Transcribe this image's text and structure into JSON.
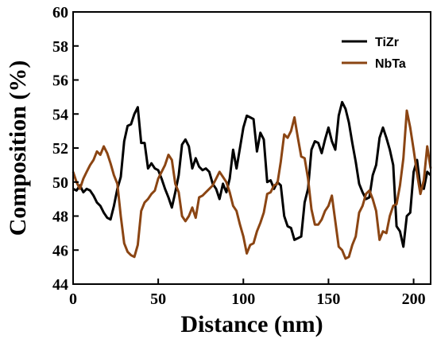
{
  "chart_data": {
    "type": "line",
    "xlabel": "Distance (nm)",
    "ylabel": "Composition (%)",
    "xlim": [
      0,
      210
    ],
    "ylim": [
      44,
      60
    ],
    "x_ticks": [
      0,
      50,
      100,
      150,
      200
    ],
    "y_ticks": [
      44,
      46,
      48,
      50,
      52,
      54,
      56,
      58,
      60
    ],
    "grid": false,
    "legend_position": "top-right",
    "series": [
      {
        "name": "TiZr",
        "color": "#000000",
        "x": [
          0,
          2,
          4,
          6,
          8,
          10,
          12,
          14,
          16,
          18,
          20,
          22,
          24,
          26,
          28,
          30,
          32,
          34,
          36,
          38,
          40,
          42,
          44,
          46,
          48,
          50,
          52,
          54,
          56,
          58,
          60,
          62,
          64,
          66,
          68,
          70,
          72,
          74,
          76,
          78,
          80,
          82,
          84,
          86,
          88,
          90,
          92,
          94,
          96,
          98,
          100,
          102,
          104,
          106,
          108,
          110,
          112,
          114,
          116,
          118,
          120,
          122,
          124,
          126,
          128,
          130,
          132,
          134,
          136,
          138,
          140,
          142,
          144,
          146,
          148,
          150,
          152,
          154,
          156,
          158,
          160,
          162,
          164,
          166,
          168,
          170,
          172,
          174,
          176,
          178,
          180,
          182,
          184,
          186,
          188,
          190,
          192,
          194,
          196,
          198,
          200,
          202,
          204,
          206,
          208,
          210
        ],
        "values": [
          49.6,
          49.5,
          49.8,
          49.4,
          49.6,
          49.5,
          49.2,
          48.8,
          48.6,
          48.2,
          47.9,
          47.8,
          48.6,
          49.6,
          50.3,
          52.4,
          53.3,
          53.4,
          54.0,
          54.4,
          52.3,
          52.3,
          50.8,
          51.1,
          50.8,
          50.7,
          50.2,
          49.6,
          49.1,
          48.5,
          49.4,
          50.4,
          52.2,
          52.5,
          52.1,
          50.8,
          51.4,
          50.9,
          50.7,
          50.8,
          50.6,
          49.9,
          49.6,
          49.0,
          49.9,
          49.4,
          50.2,
          51.9,
          50.8,
          52.0,
          53.2,
          53.9,
          53.8,
          53.7,
          51.8,
          52.9,
          52.5,
          50.0,
          50.1,
          49.6,
          50.0,
          49.8,
          48.0,
          47.4,
          47.3,
          46.6,
          46.7,
          46.8,
          48.8,
          49.6,
          51.9,
          52.4,
          52.3,
          51.7,
          52.5,
          53.2,
          52.4,
          51.9,
          53.9,
          54.7,
          54.3,
          53.5,
          52.3,
          51.2,
          49.9,
          49.4,
          49.0,
          49.1,
          50.4,
          51.0,
          52.6,
          53.2,
          52.6,
          51.9,
          51.0,
          47.4,
          47.1,
          46.2,
          48.0,
          48.2,
          50.6,
          51.3,
          49.7,
          49.6,
          50.6,
          50.4
        ]
      },
      {
        "name": "NbTa",
        "color": "#8b4513",
        "x": [
          0,
          2,
          4,
          6,
          8,
          10,
          12,
          14,
          16,
          18,
          20,
          22,
          24,
          26,
          28,
          30,
          32,
          34,
          36,
          38,
          40,
          42,
          44,
          46,
          48,
          50,
          52,
          54,
          56,
          58,
          60,
          62,
          64,
          66,
          68,
          70,
          72,
          74,
          76,
          78,
          80,
          82,
          84,
          86,
          88,
          90,
          92,
          94,
          96,
          98,
          100,
          102,
          104,
          106,
          108,
          110,
          112,
          114,
          116,
          118,
          120,
          122,
          124,
          126,
          128,
          130,
          132,
          134,
          136,
          138,
          140,
          142,
          144,
          146,
          148,
          150,
          152,
          154,
          156,
          158,
          160,
          162,
          164,
          166,
          168,
          170,
          172,
          174,
          176,
          178,
          180,
          182,
          184,
          186,
          188,
          190,
          192,
          194,
          196,
          198,
          200,
          202,
          204,
          206,
          208,
          210
        ],
        "values": [
          50.6,
          50.0,
          49.6,
          50.2,
          50.6,
          51.0,
          51.3,
          51.8,
          51.6,
          52.1,
          51.7,
          51.1,
          50.4,
          49.9,
          48.0,
          46.4,
          45.9,
          45.7,
          45.6,
          46.3,
          48.3,
          48.8,
          49.0,
          49.3,
          49.5,
          50.2,
          50.6,
          51.0,
          51.6,
          51.3,
          49.9,
          49.4,
          48.0,
          47.7,
          48.0,
          48.5,
          47.9,
          49.1,
          49.2,
          49.4,
          49.6,
          49.8,
          50.2,
          50.6,
          50.3,
          50.0,
          49.4,
          48.6,
          48.3,
          47.5,
          46.8,
          45.8,
          46.3,
          46.4,
          47.1,
          47.6,
          48.2,
          49.3,
          49.4,
          49.8,
          49.9,
          51.2,
          52.8,
          52.6,
          53.0,
          53.8,
          52.6,
          51.5,
          51.4,
          50.2,
          48.4,
          47.5,
          47.5,
          47.8,
          48.3,
          48.6,
          49.2,
          47.7,
          46.2,
          46.0,
          45.5,
          45.6,
          46.3,
          46.8,
          48.2,
          48.6,
          49.3,
          49.5,
          49.0,
          48.3,
          46.6,
          47.1,
          47.0,
          48.0,
          48.6,
          48.7,
          49.8,
          51.4,
          54.2,
          53.2,
          51.9,
          50.5,
          49.3,
          50.1,
          52.1,
          50.8
        ]
      }
    ]
  }
}
